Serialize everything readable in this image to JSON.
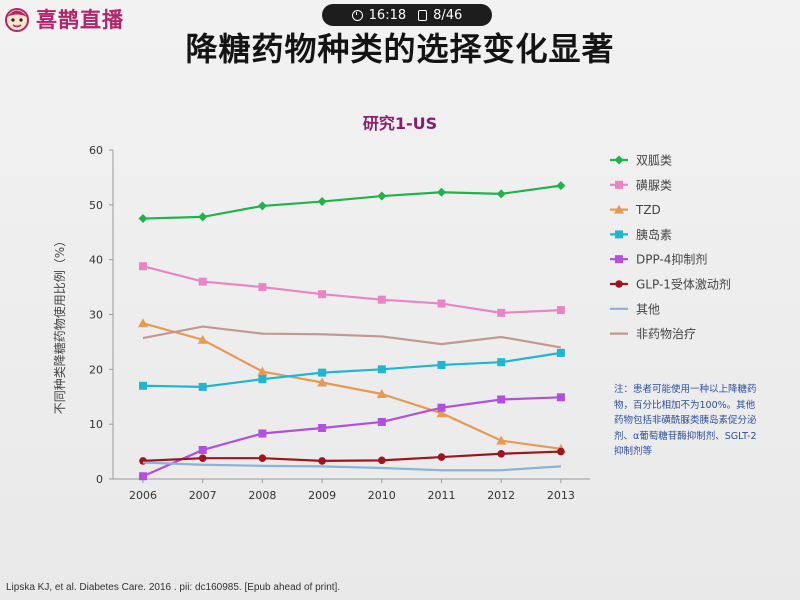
{
  "app": {
    "logo_text": "喜鹊直播",
    "status_time": "16:18",
    "status_page": "8/46"
  },
  "slide": {
    "title": "降糖药物种类的选择变化显著",
    "note": "注：患者可能使用一种以上降糖药物，百分比相加不为100%。其他药物包括非磺酰脲类胰岛素促分泌剂、α葡萄糖苷酶抑制剂、SGLT-2抑制剂等",
    "citation": "Lipska KJ, et al. Diabetes Care. 2016 . pii: dc160985. [Epub ahead of print]."
  },
  "chart_data": {
    "type": "line",
    "title": "研究1-US",
    "xlabel": "",
    "ylabel": "不同种类降糖药物使用比例（%）",
    "x": [
      "2006",
      "2007",
      "2008",
      "2009",
      "2010",
      "2011",
      "2012",
      "2013"
    ],
    "ylim": [
      0,
      60
    ],
    "yticks": [
      0,
      10,
      20,
      30,
      40,
      50,
      60
    ],
    "grid": false,
    "legend_position": "right",
    "series": [
      {
        "name": "双胍类",
        "color": "#21b34b",
        "marker": "diamond",
        "values": [
          47.5,
          47.8,
          49.8,
          50.6,
          51.6,
          52.3,
          52.0,
          53.5
        ]
      },
      {
        "name": "磺脲类",
        "color": "#e985c6",
        "marker": "square",
        "values": [
          38.8,
          36.0,
          35.0,
          33.7,
          32.7,
          32.0,
          30.3,
          30.8
        ]
      },
      {
        "name": "TZD",
        "color": "#e79a52",
        "marker": "triangle",
        "values": [
          28.4,
          25.4,
          19.6,
          17.6,
          15.5,
          12.0,
          7.0,
          5.5
        ]
      },
      {
        "name": "胰岛素",
        "color": "#1fb6d2",
        "marker": "square",
        "values": [
          17.0,
          16.8,
          18.2,
          19.4,
          20.0,
          20.8,
          21.3,
          23.0
        ]
      },
      {
        "name": "DPP-4抑制剂",
        "color": "#b04fe0",
        "marker": "square",
        "values": [
          0.5,
          5.3,
          8.3,
          9.3,
          10.4,
          13.0,
          14.5,
          14.9
        ]
      },
      {
        "name": "GLP-1受体激动剂",
        "color": "#9e1520",
        "marker": "circle",
        "values": [
          3.3,
          3.8,
          3.8,
          3.3,
          3.4,
          4.0,
          4.6,
          5.0
        ]
      },
      {
        "name": "其他",
        "color": "#8cb2d6",
        "marker": "none",
        "values": [
          3.0,
          2.6,
          2.4,
          2.3,
          2.0,
          1.6,
          1.6,
          2.3
        ]
      },
      {
        "name": "非药物治疗",
        "color": "#c29893",
        "marker": "none",
        "values": [
          25.7,
          27.8,
          26.5,
          26.4,
          26.0,
          24.6,
          25.9,
          24.0
        ]
      }
    ]
  }
}
